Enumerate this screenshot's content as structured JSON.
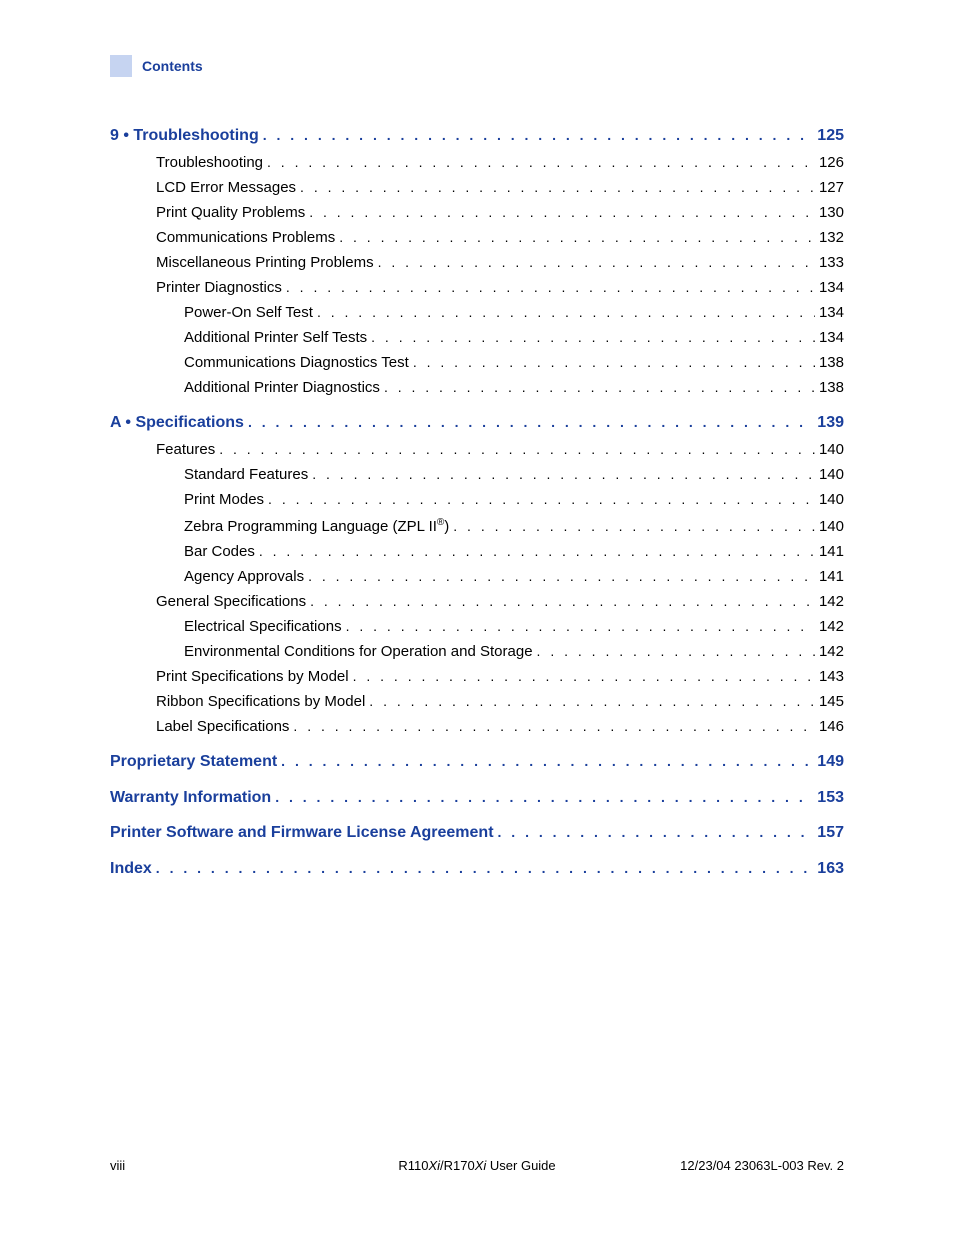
{
  "colors": {
    "link_blue": "#1a3f9c",
    "header_box_bg": "#c6d4f1",
    "body_text": "#000000",
    "page_bg": "#ffffff"
  },
  "header": {
    "title": "Contents"
  },
  "toc": [
    {
      "level": "chapter",
      "label": "9 • Troubleshooting",
      "page": "125"
    },
    {
      "level": "l1",
      "label": "Troubleshooting",
      "page": "126"
    },
    {
      "level": "l1",
      "label": "LCD Error Messages",
      "page": "127"
    },
    {
      "level": "l1",
      "label": "Print Quality Problems",
      "page": "130"
    },
    {
      "level": "l1",
      "label": "Communications Problems",
      "page": "132"
    },
    {
      "level": "l1",
      "label": "Miscellaneous Printing Problems",
      "page": "133"
    },
    {
      "level": "l1",
      "label": "Printer Diagnostics",
      "page": "134"
    },
    {
      "level": "l2",
      "label": "Power-On Self Test",
      "page": "134"
    },
    {
      "level": "l2",
      "label": "Additional Printer Self Tests",
      "page": "134"
    },
    {
      "level": "l2",
      "label": "Communications Diagnostics Test",
      "page": "138"
    },
    {
      "level": "l2",
      "label": "Additional Printer Diagnostics",
      "page": "138"
    },
    {
      "level": "chapter",
      "label": "A • Specifications",
      "page": "139"
    },
    {
      "level": "l1",
      "label": "Features",
      "page": "140"
    },
    {
      "level": "l2",
      "label": "Standard Features",
      "page": "140"
    },
    {
      "level": "l2",
      "label": "Print Modes",
      "page": "140"
    },
    {
      "level": "l2",
      "label_html": "Zebra Programming Language (ZPL II<sup>®</sup>)",
      "page": "140"
    },
    {
      "level": "l2",
      "label": "Bar Codes",
      "page": "141"
    },
    {
      "level": "l2",
      "label": "Agency Approvals",
      "page": "141"
    },
    {
      "level": "l1",
      "label": "General Specifications",
      "page": "142"
    },
    {
      "level": "l2",
      "label": "Electrical Specifications",
      "page": "142"
    },
    {
      "level": "l2",
      "label": "Environmental Conditions for Operation and Storage",
      "page": "142"
    },
    {
      "level": "l1",
      "label": "Print Specifications by Model",
      "page": "143"
    },
    {
      "level": "l1",
      "label": "Ribbon Specifications by Model",
      "page": "145"
    },
    {
      "level": "l1",
      "label": "Label Specifications",
      "page": "146"
    },
    {
      "level": "chapter",
      "label": "Proprietary Statement",
      "page": "149"
    },
    {
      "level": "chapter",
      "label": "Warranty Information",
      "page": "153"
    },
    {
      "level": "chapter",
      "label": "Printer Software and Firmware License Agreement",
      "page": "157"
    },
    {
      "level": "chapter",
      "label": "Index",
      "page": "163"
    }
  ],
  "footer": {
    "page_number": "viii",
    "center_prefix": "R110",
    "center_italic1": "Xi",
    "center_mid": "/R170",
    "center_italic2": "Xi",
    "center_suffix": " User Guide",
    "right": "12/23/04  23063L-003 Rev. 2"
  }
}
